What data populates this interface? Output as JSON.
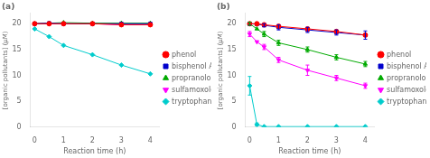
{
  "chart_data": [
    {
      "type": "line",
      "annotation": "(a)",
      "xlabel": "Reaction time (h)",
      "ylabel": "[organic pollutants] (μM)",
      "x": [
        0,
        0.5,
        1,
        2,
        3,
        4
      ],
      "series": [
        {
          "name": "phenol",
          "color": "#ff0000",
          "marker": "circle",
          "values": [
            20,
            20,
            20,
            20,
            19.8,
            19.8
          ]
        },
        {
          "name": "bisphenol A",
          "color": "#0000cc",
          "marker": "square",
          "values": [
            20,
            20.1,
            20,
            20,
            20,
            20
          ]
        },
        {
          "name": "propranolol",
          "color": "#00aa00",
          "marker": "triangle",
          "values": [
            20,
            20.1,
            20.2,
            20.1,
            20.1,
            20.1
          ]
        },
        {
          "name": "sulfamoxole",
          "color": "#ff00ff",
          "marker": "triangle_down",
          "values": [
            20,
            20,
            20,
            20,
            19.8,
            19.8
          ]
        },
        {
          "name": "tryptophan",
          "color": "#00cccc",
          "marker": "diamond",
          "values": [
            19.0,
            17.5,
            15.8,
            14.0,
            12.0,
            10.3
          ]
        }
      ],
      "xlim": [
        -0.15,
        4.3
      ],
      "xticks": [
        0,
        1,
        2,
        3,
        4
      ],
      "ylim": [
        0,
        22
      ],
      "yticks": [
        0,
        5,
        10,
        15,
        20
      ],
      "grid": false,
      "legend": "right"
    },
    {
      "type": "line",
      "annotation": "(b)",
      "xlabel": "Reaction time (h)",
      "ylabel": "[organic pollutants] (μM)",
      "x": [
        0,
        0.25,
        0.5,
        1,
        2,
        3,
        4
      ],
      "series": [
        {
          "name": "phenol",
          "color": "#ff0000",
          "marker": "circle",
          "values": [
            20,
            20,
            19.8,
            19.5,
            19.0,
            18.5,
            17.8
          ],
          "errors": [
            0.3,
            0,
            0,
            0,
            0,
            0,
            0
          ]
        },
        {
          "name": "bisphenol A",
          "color": "#0000cc",
          "marker": "square",
          "values": [
            20,
            19.9,
            19.7,
            19.3,
            18.8,
            18.3,
            17.8
          ],
          "errors": [
            0.3,
            0,
            0.3,
            0.5,
            0.5,
            0.5,
            0.8
          ]
        },
        {
          "name": "propranolol",
          "color": "#00aa00",
          "marker": "triangle",
          "values": [
            20,
            19.0,
            18.0,
            16.3,
            15.0,
            13.5,
            12.2
          ],
          "errors": [
            0.3,
            0,
            0.5,
            0.5,
            0.5,
            0.5,
            0.5
          ]
        },
        {
          "name": "sulfamoxole",
          "color": "#ff00ff",
          "marker": "triangle_down",
          "values": [
            18,
            16.5,
            15.5,
            13.0,
            11.0,
            9.5,
            8.0
          ],
          "errors": [
            0.5,
            0,
            0.5,
            0.5,
            1.0,
            0.5,
            0.5
          ]
        },
        {
          "name": "tryptophan",
          "color": "#00cccc",
          "marker": "diamond",
          "values": [
            8.0,
            0.5,
            0.1,
            0.1,
            0.1,
            0.1,
            0.1
          ],
          "errors": [
            1.8,
            0.3,
            0,
            0,
            0,
            0,
            0
          ]
        }
      ],
      "xlim": [
        -0.15,
        4.3
      ],
      "xticks": [
        0,
        1,
        2,
        3,
        4
      ],
      "ylim": [
        0,
        22
      ],
      "yticks": [
        0,
        5,
        10,
        15,
        20
      ],
      "grid": false,
      "legend": "right"
    }
  ]
}
